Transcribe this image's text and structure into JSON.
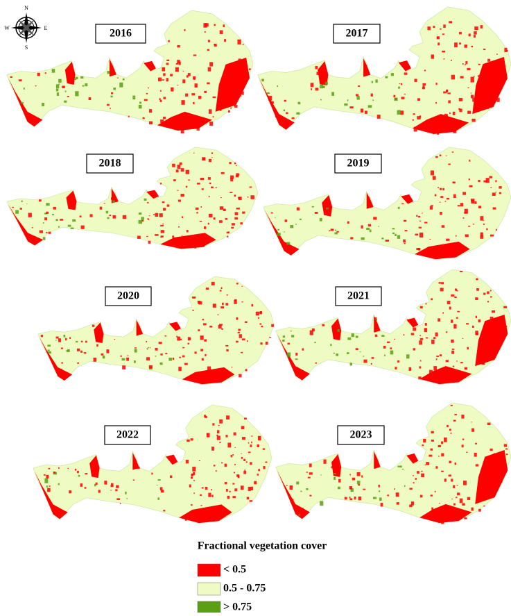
{
  "compass": {
    "north": "N",
    "south": "S",
    "east": "E",
    "west": "W"
  },
  "panels": [
    {
      "year": "2016"
    },
    {
      "year": "2017"
    },
    {
      "year": "2018"
    },
    {
      "year": "2019"
    },
    {
      "year": "2020"
    },
    {
      "year": "2021"
    },
    {
      "year": "2022"
    },
    {
      "year": "2023"
    }
  ],
  "legend": {
    "title": "Fractional vegetation cover",
    "items": [
      {
        "label": "< 0.5",
        "color": "#ff0000"
      },
      {
        "label": "0.5 - 0.75",
        "color": "#eefcc4"
      },
      {
        "label": "> 0.75",
        "color": "#5c9e14"
      }
    ]
  }
}
